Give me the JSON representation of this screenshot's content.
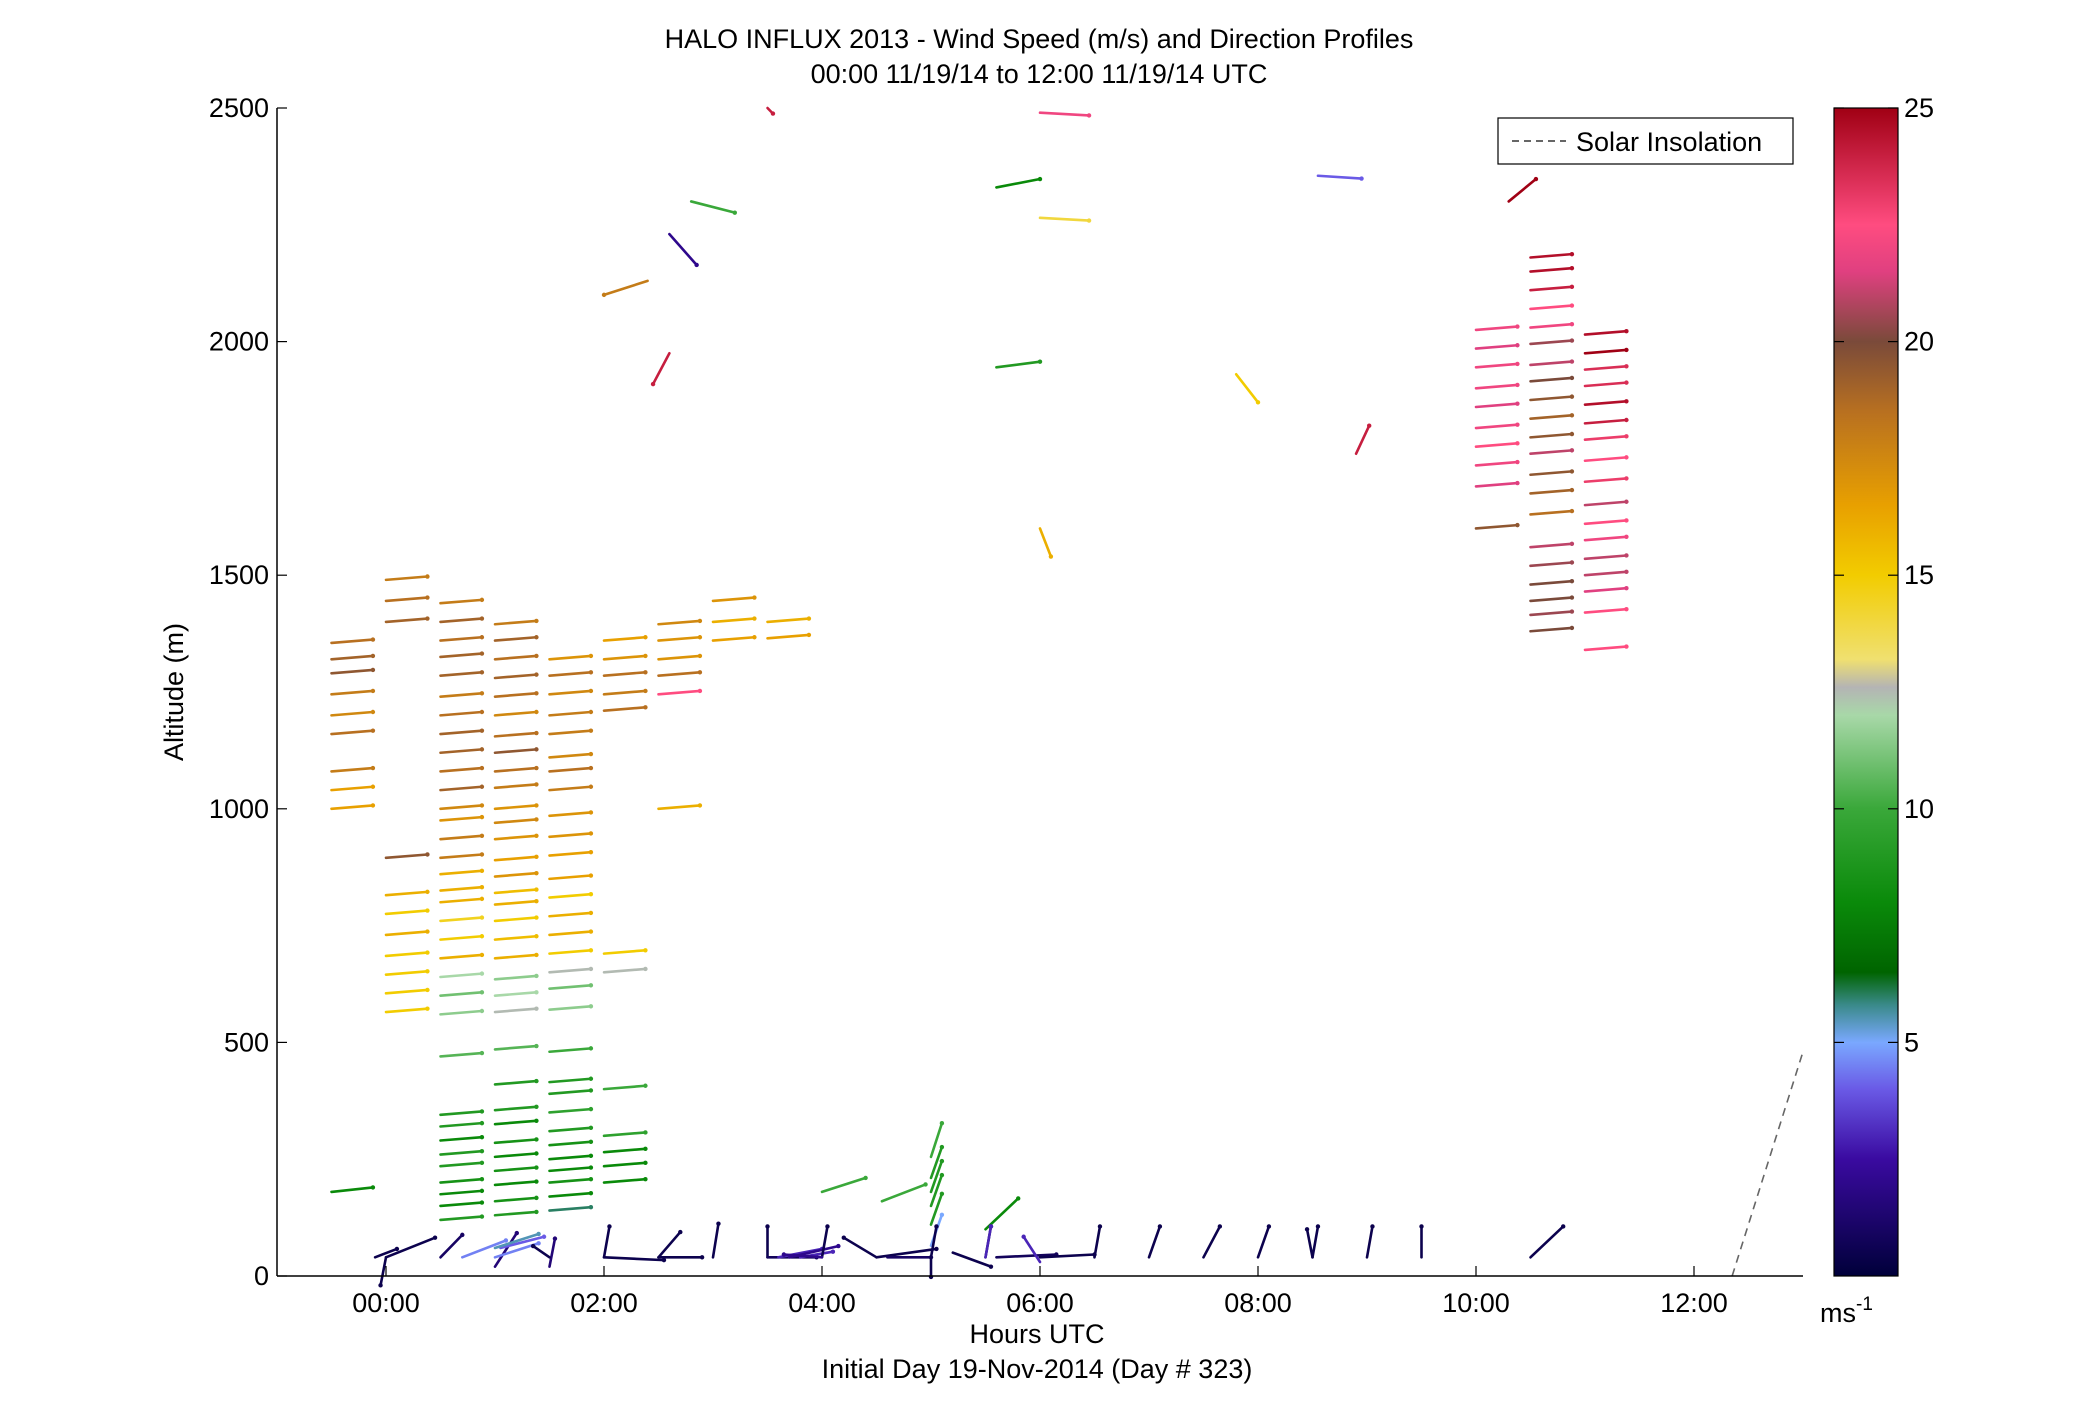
{
  "chart_data": {
    "type": "wind_barb_profile",
    "title": "HALO INFLUX 2013 - Wind Speed (m/s) and Direction Profiles",
    "subtitle": "00:00 11/19/14 to 12:00 11/19/14  UTC",
    "xlabel": "Hours UTC",
    "footer": "Initial Day 19-Nov-2014 (Day # 323)",
    "ylabel": "Altitude (m)",
    "xlim": [
      -1,
      13
    ],
    "ylim": [
      0,
      2500
    ],
    "x_ticks": [
      {
        "v": 0,
        "label": "00:00"
      },
      {
        "v": 2,
        "label": "02:00"
      },
      {
        "v": 4,
        "label": "04:00"
      },
      {
        "v": 6,
        "label": "06:00"
      },
      {
        "v": 8,
        "label": "08:00"
      },
      {
        "v": 10,
        "label": "10:00"
      },
      {
        "v": 12,
        "label": "12:00"
      }
    ],
    "y_ticks": [
      0,
      500,
      1000,
      1500,
      2000,
      2500
    ],
    "colorbar": {
      "ticks": [
        5,
        10,
        15,
        20,
        25
      ],
      "range": [
        0,
        25
      ],
      "unit_label": "ms",
      "unit_exp": "-1",
      "stops": [
        {
          "v": 0,
          "color": "#00003a"
        },
        {
          "v": 2.5,
          "color": "#3a0aa0"
        },
        {
          "v": 4,
          "color": "#6a5ae6"
        },
        {
          "v": 5,
          "color": "#7aa8ff"
        },
        {
          "v": 5.8,
          "color": "#3a8a8a"
        },
        {
          "v": 6.5,
          "color": "#006400"
        },
        {
          "v": 8,
          "color": "#0a8a0a"
        },
        {
          "v": 10,
          "color": "#3aa83a"
        },
        {
          "v": 12,
          "color": "#a8d8a8"
        },
        {
          "v": 12.6,
          "color": "#b4b4b4"
        },
        {
          "v": 13.2,
          "color": "#f0e070"
        },
        {
          "v": 15,
          "color": "#f2cc00"
        },
        {
          "v": 16.5,
          "color": "#e8a000"
        },
        {
          "v": 18.5,
          "color": "#b87020"
        },
        {
          "v": 20,
          "color": "#7a4a3a"
        },
        {
          "v": 21.5,
          "color": "#e04080"
        },
        {
          "v": 22.5,
          "color": "#ff4c80"
        },
        {
          "v": 25,
          "color": "#a00014"
        }
      ]
    },
    "legend": {
      "label": "Solar Insolation",
      "position": "top-right",
      "style": "dashed gray"
    },
    "solar_insolation": [
      {
        "x": 12.35,
        "y": 0
      },
      {
        "x": 13.0,
        "y": 480
      }
    ],
    "barb_length_hours": 0.38,
    "columns": [
      {
        "x": -0.5,
        "levels": [
          [
            1000,
            16.5
          ],
          [
            1040,
            16.5
          ],
          [
            1080,
            18
          ],
          [
            1160,
            18.5
          ],
          [
            1200,
            17.5
          ],
          [
            1245,
            18
          ],
          [
            1290,
            19.5
          ],
          [
            1320,
            19
          ],
          [
            1355,
            18.5
          ]
        ],
        "extra": [
          [
            180,
            8
          ]
        ]
      },
      {
        "x": 0.0,
        "levels": [
          [
            565,
            15
          ],
          [
            605,
            15
          ],
          [
            645,
            15
          ],
          [
            685,
            15
          ],
          [
            730,
            16
          ],
          [
            775,
            15
          ],
          [
            815,
            16
          ],
          [
            895,
            19.5
          ],
          [
            1400,
            19
          ],
          [
            1445,
            18.5
          ],
          [
            1490,
            18
          ]
        ]
      },
      {
        "x": 0.5,
        "levels": [
          [
            120,
            9
          ],
          [
            150,
            8
          ],
          [
            175,
            8
          ],
          [
            200,
            8.5
          ],
          [
            235,
            9
          ],
          [
            260,
            9
          ],
          [
            290,
            8
          ],
          [
            320,
            9
          ],
          [
            345,
            9
          ],
          [
            470,
            10.5
          ],
          [
            560,
            11.5
          ],
          [
            600,
            11
          ],
          [
            640,
            12
          ],
          [
            680,
            16
          ],
          [
            720,
            15
          ],
          [
            760,
            14.5
          ],
          [
            800,
            16
          ],
          [
            825,
            16
          ],
          [
            860,
            16
          ],
          [
            895,
            18
          ],
          [
            935,
            18
          ],
          [
            975,
            17
          ],
          [
            1000,
            17.5
          ],
          [
            1040,
            19
          ],
          [
            1080,
            18.5
          ],
          [
            1120,
            19
          ],
          [
            1160,
            19
          ],
          [
            1200,
            18.5
          ],
          [
            1240,
            18
          ],
          [
            1285,
            19
          ],
          [
            1325,
            19
          ],
          [
            1360,
            18.5
          ],
          [
            1400,
            19
          ],
          [
            1440,
            18
          ]
        ]
      },
      {
        "x": 1.0,
        "levels": [
          [
            130,
            9
          ],
          [
            160,
            8.5
          ],
          [
            195,
            8
          ],
          [
            225,
            8.5
          ],
          [
            255,
            8
          ],
          [
            285,
            8.5
          ],
          [
            325,
            8
          ],
          [
            355,
            9
          ],
          [
            410,
            9
          ],
          [
            485,
            10.5
          ],
          [
            565,
            12.5
          ],
          [
            600,
            12
          ],
          [
            635,
            11.5
          ],
          [
            680,
            16
          ],
          [
            720,
            15.5
          ],
          [
            760,
            15
          ],
          [
            795,
            16
          ],
          [
            820,
            15.5
          ],
          [
            855,
            17
          ],
          [
            890,
            16.5
          ],
          [
            935,
            17
          ],
          [
            970,
            17.5
          ],
          [
            1000,
            17
          ],
          [
            1045,
            18
          ],
          [
            1080,
            18.5
          ],
          [
            1120,
            19.5
          ],
          [
            1155,
            18.5
          ],
          [
            1200,
            17.5
          ],
          [
            1240,
            18.5
          ],
          [
            1280,
            19
          ],
          [
            1320,
            18.5
          ],
          [
            1360,
            19
          ],
          [
            1395,
            18
          ]
        ]
      },
      {
        "x": 1.5,
        "levels": [
          [
            140,
            6
          ],
          [
            170,
            8
          ],
          [
            200,
            8.5
          ],
          [
            225,
            8
          ],
          [
            250,
            8
          ],
          [
            280,
            8.5
          ],
          [
            310,
            9
          ],
          [
            350,
            9.5
          ],
          [
            390,
            9
          ],
          [
            415,
            9
          ],
          [
            480,
            10
          ],
          [
            570,
            11.5
          ],
          [
            615,
            11
          ],
          [
            650,
            12.5
          ],
          [
            690,
            15
          ],
          [
            730,
            16
          ],
          [
            770,
            16
          ],
          [
            810,
            15
          ],
          [
            850,
            16.5
          ],
          [
            900,
            16.5
          ],
          [
            940,
            17
          ],
          [
            985,
            17
          ],
          [
            1040,
            18
          ],
          [
            1080,
            18.5
          ],
          [
            1110,
            17.5
          ],
          [
            1160,
            18
          ],
          [
            1200,
            18
          ],
          [
            1245,
            17.5
          ],
          [
            1285,
            18.5
          ],
          [
            1320,
            17
          ]
        ]
      },
      {
        "x": 2.0,
        "levels": [
          [
            200,
            8
          ],
          [
            235,
            8
          ],
          [
            265,
            8
          ],
          [
            300,
            9.5
          ],
          [
            400,
            10
          ],
          [
            650,
            12.5
          ],
          [
            690,
            15
          ],
          [
            1210,
            18.5
          ],
          [
            1245,
            18
          ],
          [
            1285,
            18.5
          ],
          [
            1320,
            17
          ],
          [
            1360,
            16.5
          ]
        ]
      },
      {
        "x": 2.5,
        "levels": [
          [
            1245,
            22.5
          ],
          [
            1285,
            18.5
          ],
          [
            1320,
            17
          ],
          [
            1360,
            17
          ],
          [
            1395,
            17.5
          ],
          [
            1000,
            16
          ]
        ]
      },
      {
        "x": 3.0,
        "levels": [
          [
            1360,
            16.5
          ],
          [
            1400,
            16
          ],
          [
            1445,
            17
          ]
        ]
      },
      {
        "x": 3.5,
        "levels": [
          [
            1365,
            16.5
          ],
          [
            1400,
            16
          ]
        ]
      },
      {
        "x": 10.0,
        "levels": [
          [
            1600,
            19.5
          ],
          [
            1690,
            21.5
          ],
          [
            1735,
            22
          ],
          [
            1775,
            22.5
          ],
          [
            1815,
            22
          ],
          [
            1860,
            21.5
          ],
          [
            1900,
            22
          ],
          [
            1945,
            22
          ],
          [
            1985,
            21.5
          ],
          [
            2025,
            22
          ]
        ]
      },
      {
        "x": 10.5,
        "levels": [
          [
            1380,
            20
          ],
          [
            1415,
            20.5
          ],
          [
            1445,
            20
          ],
          [
            1480,
            20
          ],
          [
            1520,
            20.5
          ],
          [
            1560,
            21
          ],
          [
            1630,
            18.5
          ],
          [
            1675,
            19
          ],
          [
            1715,
            19.5
          ],
          [
            1760,
            21
          ],
          [
            1795,
            19.5
          ],
          [
            1835,
            19
          ],
          [
            1875,
            19.5
          ],
          [
            1915,
            20
          ],
          [
            1950,
            21
          ],
          [
            1995,
            20.5
          ],
          [
            2030,
            22
          ],
          [
            2070,
            22.5
          ],
          [
            2110,
            24
          ],
          [
            2150,
            24.5
          ],
          [
            2180,
            24.5
          ]
        ]
      },
      {
        "x": 11.0,
        "levels": [
          [
            1340,
            22.5
          ],
          [
            1420,
            22.5
          ],
          [
            1465,
            21.5
          ],
          [
            1500,
            21
          ],
          [
            1535,
            21
          ],
          [
            1575,
            22
          ],
          [
            1610,
            22.5
          ],
          [
            1650,
            21
          ],
          [
            1700,
            23
          ],
          [
            1745,
            22.5
          ],
          [
            1790,
            23
          ],
          [
            1825,
            24
          ],
          [
            1865,
            24.5
          ],
          [
            1905,
            23.5
          ],
          [
            1940,
            23.5
          ],
          [
            1975,
            25
          ],
          [
            2015,
            24.5
          ]
        ]
      }
    ],
    "scattered": [
      [
        2.4,
        2130,
        18,
        -0.4,
        -0.25
      ],
      [
        2.6,
        1975,
        24,
        -0.15,
        -0.55
      ],
      [
        2.6,
        2230,
        2,
        0.25,
        -0.55
      ],
      [
        2.8,
        2300,
        10,
        0.4,
        -0.2
      ],
      [
        3.5,
        2500,
        24,
        0.05,
        -0.1
      ],
      [
        4.0,
        180,
        10,
        0.4,
        0.25
      ],
      [
        4.55,
        160,
        10,
        0.4,
        0.3
      ],
      [
        5.0,
        110,
        9,
        0.1,
        0.55
      ],
      [
        5.0,
        150,
        9,
        0.1,
        0.55
      ],
      [
        5.0,
        180,
        9,
        0.1,
        0.55
      ],
      [
        5.0,
        210,
        9,
        0.1,
        0.55
      ],
      [
        5.0,
        255,
        10,
        0.1,
        0.6
      ],
      [
        5.0,
        65,
        5,
        0.1,
        0.55
      ],
      [
        5.5,
        100,
        8,
        0.3,
        0.55
      ],
      [
        5.6,
        2330,
        8,
        0.4,
        0.15
      ],
      [
        5.6,
        1945,
        9,
        0.4,
        0.1
      ],
      [
        6.0,
        1600,
        16,
        0.1,
        -0.5
      ],
      [
        6.0,
        2490,
        22,
        0.45,
        -0.05
      ],
      [
        6.0,
        2265,
        14,
        0.45,
        -0.05
      ],
      [
        7.8,
        1930,
        15,
        0.2,
        -0.5
      ],
      [
        8.55,
        2355,
        4,
        0.4,
        -0.05
      ],
      [
        8.9,
        1760,
        24,
        0.12,
        0.5
      ],
      [
        10.3,
        2300,
        25,
        0.25,
        0.4
      ]
    ],
    "near_surface": [
      [
        -0.1,
        40,
        0.5,
        0.2,
        0.15
      ],
      [
        0.0,
        40,
        0.5,
        -0.05,
        -0.5
      ],
      [
        0.0,
        40,
        0.5,
        0.45,
        0.35
      ],
      [
        0.5,
        40,
        1.0,
        0.2,
        0.4
      ],
      [
        0.7,
        40,
        4.5,
        0.4,
        0.3
      ],
      [
        1.0,
        20,
        1.5,
        0.2,
        0.6
      ],
      [
        1.0,
        40,
        4.5,
        0.4,
        0.25
      ],
      [
        1.05,
        60,
        4,
        0.4,
        0.2
      ],
      [
        1.0,
        60,
        5.5,
        0.4,
        0.25
      ],
      [
        1.5,
        20,
        1.5,
        0.05,
        0.5
      ],
      [
        1.5,
        40,
        0.5,
        -0.15,
        0.2
      ],
      [
        2.0,
        40,
        0.5,
        0.05,
        0.55
      ],
      [
        2.0,
        40,
        0.5,
        0.55,
        -0.05
      ],
      [
        2.5,
        40,
        0.5,
        0.4,
        0.0
      ],
      [
        2.5,
        40,
        0.5,
        0.2,
        0.45
      ],
      [
        3.0,
        40,
        0.5,
        0.05,
        0.6
      ],
      [
        3.5,
        40,
        0.5,
        0.0,
        0.55
      ],
      [
        3.5,
        40,
        0.8,
        0.45,
        0.0
      ],
      [
        3.6,
        40,
        3,
        0.4,
        0.15
      ],
      [
        3.7,
        40,
        2,
        0.45,
        0.2
      ],
      [
        3.8,
        40,
        3,
        0.3,
        0.1
      ],
      [
        4.0,
        40,
        0.5,
        0.05,
        0.55
      ],
      [
        4.0,
        40,
        2,
        -0.35,
        0.05
      ],
      [
        4.5,
        40,
        0.5,
        -0.3,
        0.35
      ],
      [
        4.5,
        40,
        0.5,
        0.55,
        0.15
      ],
      [
        4.6,
        40,
        1.0,
        0.4,
        0.0
      ],
      [
        5.0,
        40,
        0.5,
        0.05,
        0.55
      ],
      [
        5.0,
        40,
        0.5,
        0.0,
        -0.35
      ],
      [
        5.2,
        50,
        0.5,
        0.35,
        -0.25
      ],
      [
        5.5,
        40,
        0.5,
        0.05,
        0.55
      ],
      [
        5.5,
        40,
        3,
        0.05,
        0.55
      ],
      [
        5.6,
        40,
        0.8,
        0.55,
        0.05
      ],
      [
        6.0,
        30,
        3,
        -0.15,
        0.45
      ],
      [
        6.0,
        40,
        0.5,
        0.5,
        0.05
      ],
      [
        6.5,
        40,
        0.5,
        0.05,
        0.55
      ],
      [
        7.0,
        40,
        0.5,
        0.1,
        0.55
      ],
      [
        7.5,
        40,
        0.5,
        0.15,
        0.55
      ],
      [
        8.0,
        40,
        0.5,
        0.1,
        0.55
      ],
      [
        8.5,
        40,
        0.5,
        0.05,
        0.55
      ],
      [
        8.5,
        40,
        0.5,
        -0.05,
        0.5
      ],
      [
        9.0,
        40,
        0.5,
        0.05,
        0.55
      ],
      [
        9.5,
        40,
        0.5,
        0.0,
        0.55
      ],
      [
        10.5,
        40,
        0.5,
        0.3,
        0.55
      ]
    ]
  }
}
